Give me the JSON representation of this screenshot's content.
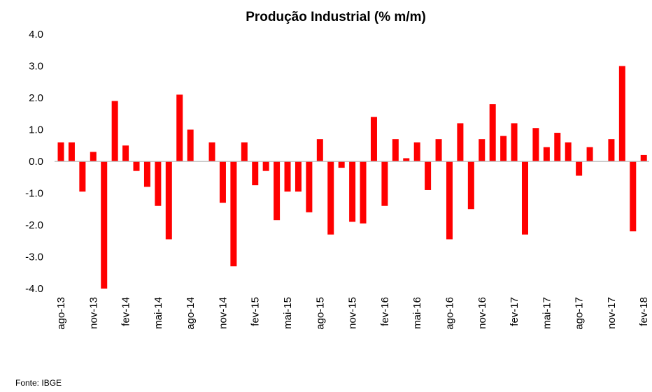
{
  "chart_data": {
    "type": "bar",
    "title": "Produção Industrial (% m/m)",
    "categories": [
      "ago-13",
      null,
      null,
      "nov-13",
      null,
      null,
      "fev-14",
      null,
      null,
      "mai-14",
      null,
      null,
      "ago-14",
      null,
      null,
      "nov-14",
      null,
      null,
      "fev-15",
      null,
      null,
      "mai-15",
      null,
      null,
      "ago-15",
      null,
      null,
      "nov-15",
      null,
      null,
      "fev-16",
      null,
      null,
      "mai-16",
      null,
      null,
      "ago-16",
      null,
      null,
      "nov-16",
      null,
      null,
      "fev-17",
      null,
      null,
      "mai-17",
      null,
      null,
      "ago-17",
      null,
      null,
      "nov-17",
      null,
      null,
      "fev-18"
    ],
    "values": [
      0.6,
      0.6,
      -0.95,
      0.3,
      -4.0,
      1.9,
      0.5,
      -0.3,
      -0.8,
      -1.4,
      -2.45,
      2.1,
      1.0,
      0.0,
      0.6,
      -1.3,
      -3.3,
      0.6,
      -0.75,
      -0.3,
      -1.85,
      -0.95,
      -0.95,
      -1.6,
      0.7,
      -2.3,
      -0.2,
      -1.9,
      -1.95,
      1.4,
      -1.4,
      0.7,
      0.1,
      0.6,
      -0.9,
      0.7,
      -2.45,
      1.2,
      -1.5,
      0.7,
      1.8,
      0.8,
      1.2,
      -2.3,
      1.05,
      0.45,
      0.9,
      0.6,
      -0.45,
      0.45,
      0.0,
      0.7,
      3.0,
      -2.2,
      0.2
    ],
    "color": "#ff0000",
    "ylim": [
      -4,
      4
    ],
    "yticks": [
      {
        "value": -4,
        "label": "-4.0"
      },
      {
        "value": -3,
        "label": "-3.0"
      },
      {
        "value": -2,
        "label": "-2.0"
      },
      {
        "value": -1,
        "label": "-1.0"
      },
      {
        "value": 0,
        "label": "0.0"
      },
      {
        "value": 1,
        "label": "1.0"
      },
      {
        "value": 2,
        "label": "2.0"
      },
      {
        "value": 3,
        "label": "3.0"
      },
      {
        "value": 4,
        "label": "4.0"
      }
    ],
    "source": "Fonte: IBGE"
  }
}
